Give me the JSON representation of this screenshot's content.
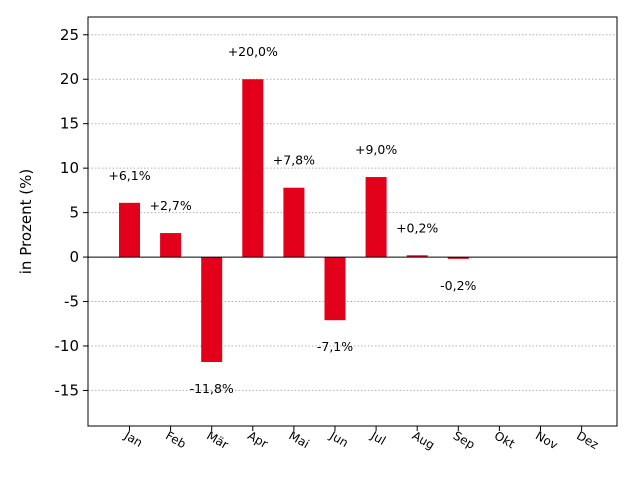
{
  "chart_data": {
    "type": "bar",
    "title": "",
    "xlabel": "",
    "ylabel": "in Prozent (%)",
    "categories": [
      "Jan",
      "Feb",
      "Mär",
      "Apr",
      "Mai",
      "Jun",
      "Jul",
      "Aug",
      "Sep",
      "Okt",
      "Nov",
      "Dez"
    ],
    "values": [
      6.1,
      2.7,
      -11.8,
      20.0,
      7.8,
      -7.1,
      9.0,
      0.2,
      -0.2,
      0,
      0,
      0
    ],
    "data_labels": [
      "+6,1%",
      "+2,7%",
      "-11,8%",
      "+20,0%",
      "+7,8%",
      "-7,1%",
      "+9,0%",
      "+0,2%",
      "-0,2%",
      "",
      "",
      ""
    ],
    "ylim": [
      -19,
      27
    ],
    "yticks": [
      25,
      20,
      15,
      10,
      5,
      0,
      -5,
      -10,
      -15
    ],
    "ytick_labels": [
      "25",
      "20",
      "15",
      "10",
      "5",
      "0",
      "-5",
      "-10",
      "-15"
    ],
    "grid": true,
    "bar_color": "#e2001a",
    "grid_color": "#b0b0b0",
    "zero_line_color": "#000000"
  }
}
